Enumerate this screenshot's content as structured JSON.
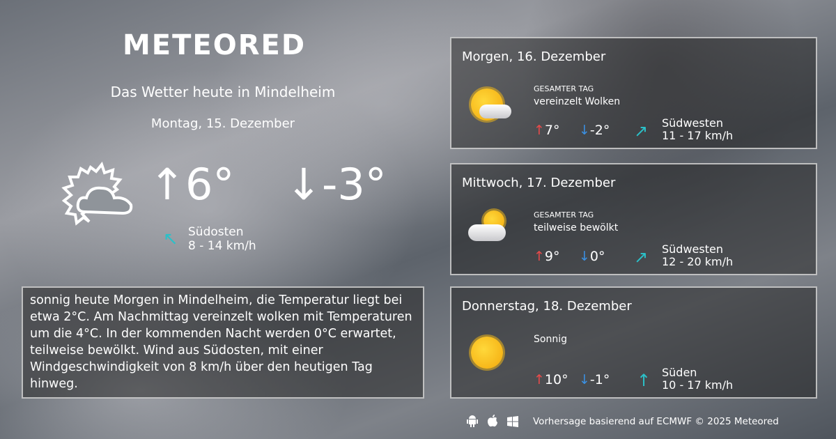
{
  "logo": "METEORED",
  "title": "Das Wetter heute in Mindelheim",
  "date": "Montag, 15. Dezember",
  "today": {
    "icon": "sun-cloud-outline-icon",
    "high": "↑6°",
    "low": "↓-3°",
    "wind_dir": "Südosten",
    "wind_speed": "8 - 14 km/h"
  },
  "description": "sonnig heute Morgen in Mindelheim, die Temperatur liegt bei etwa 2°C. Am Nachmittag vereinzelt wolken mit Temperaturen um die 4°C. In der kommenden Nacht werden 0°C erwartet, teilweise bewölkt. Wind aus Südosten, mit einer Windgeschwindigkeit von 8 km/h über den heutigen Tag hinweg.",
  "forecast": [
    {
      "title": "Morgen, 16. Dezember",
      "label": "GESAMTER TAG",
      "condition": "vereinzelt Wolken",
      "high": "7°",
      "low": "-2°",
      "wind_dir": "Südwesten",
      "wind_speed": "11 - 17 km/h",
      "icon": "sun-cloud-icon"
    },
    {
      "title": "Mittwoch, 17. Dezember",
      "label": "GESAMTER TAG",
      "condition": "teilweise bewölkt",
      "high": "9°",
      "low": "0°",
      "wind_dir": "Südwesten",
      "wind_speed": "12 - 20 km/h",
      "icon": "cloud-sun-icon"
    },
    {
      "title": "Donnerstag, 18. Dezember",
      "label": "",
      "condition": "Sonnig",
      "high": "10°",
      "low": "-1°",
      "wind_dir": "Süden",
      "wind_speed": "10 - 17 km/h",
      "icon": "sun-icon"
    }
  ],
  "footer": "Vorhersage basierend auf ECMWF © 2025 Meteored",
  "colors": {
    "high": "#e94a4a",
    "low": "#3b8fe0",
    "wind": "#2bc0c8"
  }
}
